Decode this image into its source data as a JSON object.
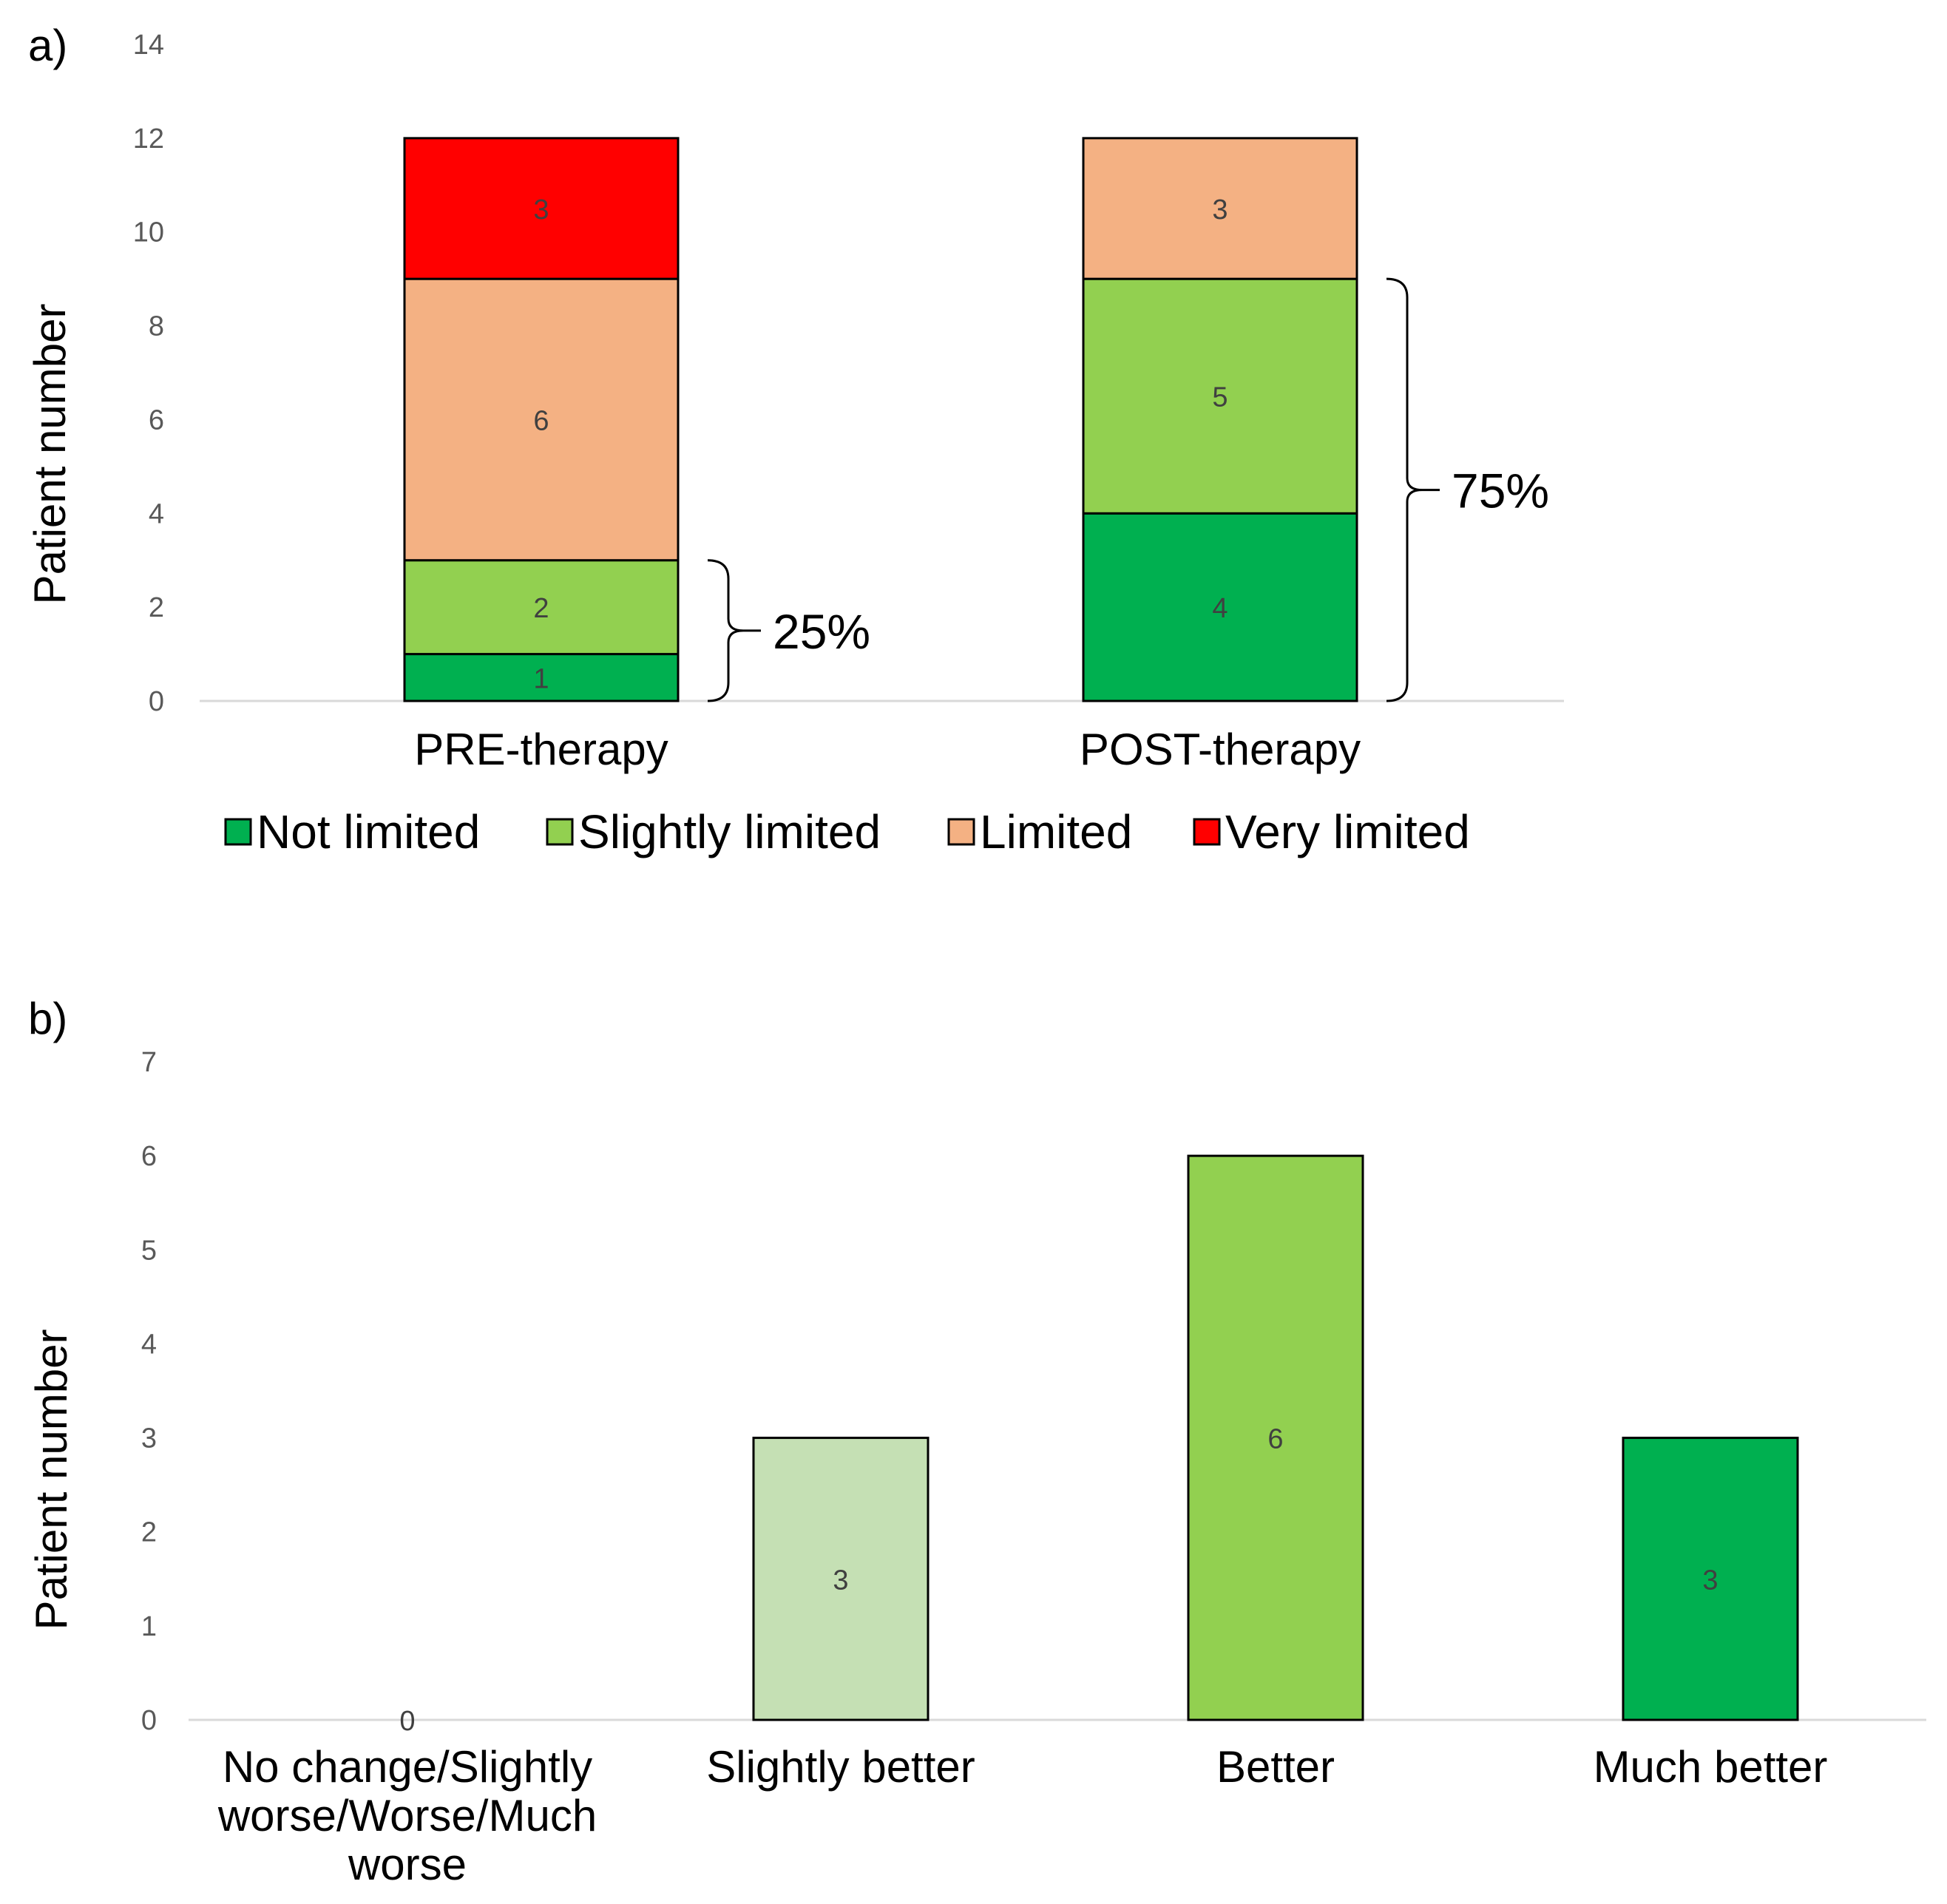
{
  "chart_data": [
    {
      "panel": "a)",
      "type": "bar",
      "stacked": true,
      "ylabel": "Patient number",
      "ylim": [
        0,
        14
      ],
      "yticks": [
        0,
        2,
        4,
        6,
        8,
        10,
        12,
        14
      ],
      "categories": [
        "PRE-therapy",
        "POST-therapy"
      ],
      "series": [
        {
          "name": "Not limited",
          "color": "#00b050",
          "values": [
            1,
            4
          ]
        },
        {
          "name": "Slightly limited",
          "color": "#92d050",
          "values": [
            2,
            5
          ]
        },
        {
          "name": "Limited",
          "color": "#f4b183",
          "values": [
            6,
            3
          ]
        },
        {
          "name": "Very limited",
          "color": "#ff0000",
          "values": [
            3,
            0
          ]
        }
      ],
      "annotations": [
        {
          "category": "PRE-therapy",
          "text": "25%",
          "from": 0,
          "to": 3
        },
        {
          "category": "POST-therapy",
          "text": "75%",
          "from": 0,
          "to": 9
        }
      ],
      "legend": "bottom"
    },
    {
      "panel": "b)",
      "type": "bar",
      "ylabel": "Patient number",
      "ylim": [
        0,
        7
      ],
      "yticks": [
        0,
        1,
        2,
        3,
        4,
        5,
        6,
        7
      ],
      "categories": [
        "No change/Slightly worse/Worse/Much worse",
        "Slightly better",
        "Better",
        "Much better"
      ],
      "category_lines": [
        [
          "No change/Slightly",
          "worse/Worse/Much",
          "worse"
        ],
        [
          "Slightly better"
        ],
        [
          "Better"
        ],
        [
          "Much better"
        ]
      ],
      "values": [
        0,
        3,
        6,
        3
      ],
      "colors": [
        "#00b050",
        "#c5e0b4",
        "#92d050",
        "#00b050"
      ]
    }
  ]
}
